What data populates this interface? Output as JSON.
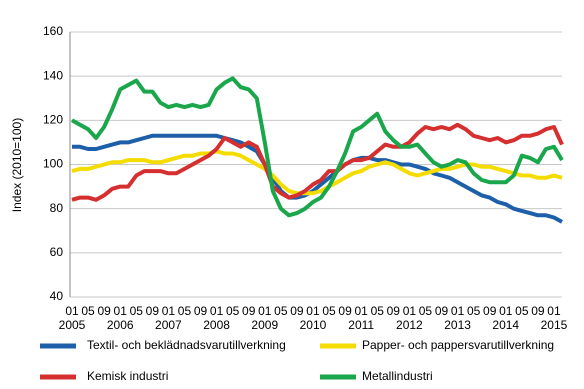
{
  "chart_data": {
    "type": "line",
    "y_label": "Index (2010=100)",
    "categories": [
      "01",
      null,
      "05",
      null,
      "09",
      null,
      "01",
      null,
      "05",
      null,
      "09",
      null,
      "01",
      null,
      "05",
      null,
      "09",
      null,
      "01",
      null,
      "05",
      null,
      "09",
      null,
      "01",
      null,
      "05",
      null,
      "09",
      null,
      "01",
      null,
      "05",
      null,
      "09",
      null,
      "01",
      null,
      "05",
      null,
      "09",
      null,
      "01",
      null,
      "05",
      null,
      "09",
      null,
      "01",
      null,
      "05",
      null,
      "09",
      null,
      "01",
      null,
      "05",
      null,
      "09",
      null,
      "01",
      null
    ],
    "category_years": [
      "2005",
      null,
      null,
      null,
      null,
      null,
      "2006",
      null,
      null,
      null,
      null,
      null,
      "2007",
      null,
      null,
      null,
      null,
      null,
      "2008",
      null,
      null,
      null,
      null,
      null,
      "2009",
      null,
      null,
      null,
      null,
      null,
      "2010",
      null,
      null,
      null,
      null,
      null,
      "2011",
      null,
      null,
      null,
      null,
      null,
      "2012",
      null,
      null,
      null,
      null,
      null,
      "2013",
      null,
      null,
      null,
      null,
      null,
      "2014",
      null,
      null,
      null,
      null,
      null,
      "2015",
      null
    ],
    "ylim": [
      40,
      160
    ],
    "yticks": [
      40,
      60,
      80,
      100,
      120,
      140,
      160
    ],
    "grid": true,
    "series": [
      {
        "name": "Textil- och beklädnadsvarutillverkning",
        "color": "#1d5fa8",
        "values": [
          108,
          108,
          107,
          107,
          108,
          109,
          110,
          110,
          111,
          112,
          113,
          113,
          113,
          113,
          113,
          113,
          113,
          113,
          113,
          112,
          111,
          110,
          108,
          106,
          100,
          94,
          88,
          85,
          85,
          86,
          88,
          91,
          94,
          97,
          100,
          102,
          103,
          103,
          102,
          102,
          101,
          100,
          100,
          99,
          98,
          96,
          95,
          94,
          92,
          90,
          88,
          86,
          85,
          83,
          82,
          80,
          79,
          78,
          77,
          77,
          76,
          74
        ]
      },
      {
        "name": "Papper- och pappersvarutillverkning",
        "color": "#f5dc00",
        "values": [
          97,
          98,
          98,
          99,
          100,
          101,
          101,
          102,
          102,
          102,
          101,
          101,
          102,
          103,
          104,
          104,
          105,
          105,
          106,
          105,
          105,
          104,
          102,
          100,
          98,
          95,
          91,
          88,
          87,
          87,
          87,
          88,
          90,
          92,
          94,
          96,
          97,
          99,
          100,
          101,
          100,
          98,
          96,
          95,
          96,
          97,
          98,
          98,
          99,
          100,
          100,
          99,
          99,
          98,
          97,
          96,
          95,
          95,
          94,
          94,
          95,
          94
        ]
      },
      {
        "name": "Kemisk industri",
        "color": "#d62f2f",
        "values": [
          84,
          85,
          85,
          84,
          86,
          89,
          90,
          90,
          95,
          97,
          97,
          97,
          96,
          96,
          98,
          100,
          102,
          104,
          107,
          112,
          110,
          108,
          110,
          108,
          100,
          90,
          87,
          85,
          86,
          88,
          91,
          93,
          97,
          97,
          100,
          102,
          102,
          103,
          106,
          109,
          108,
          108,
          110,
          114,
          117,
          116,
          117,
          116,
          118,
          116,
          113,
          112,
          111,
          112,
          110,
          111,
          113,
          113,
          114,
          116,
          117,
          109
        ]
      },
      {
        "name": "Metallindustri",
        "color": "#1aa64b",
        "values": [
          120,
          118,
          116,
          112,
          117,
          125,
          134,
          136,
          138,
          133,
          133,
          128,
          126,
          127,
          126,
          127,
          126,
          127,
          134,
          137,
          139,
          135,
          134,
          130,
          110,
          88,
          80,
          77,
          78,
          80,
          83,
          85,
          90,
          97,
          105,
          115,
          117,
          120,
          123,
          115,
          111,
          108,
          108,
          109,
          105,
          101,
          99,
          100,
          102,
          101,
          96,
          93,
          92,
          92,
          92,
          95,
          104,
          103,
          101,
          107,
          108,
          102
        ]
      }
    ]
  }
}
